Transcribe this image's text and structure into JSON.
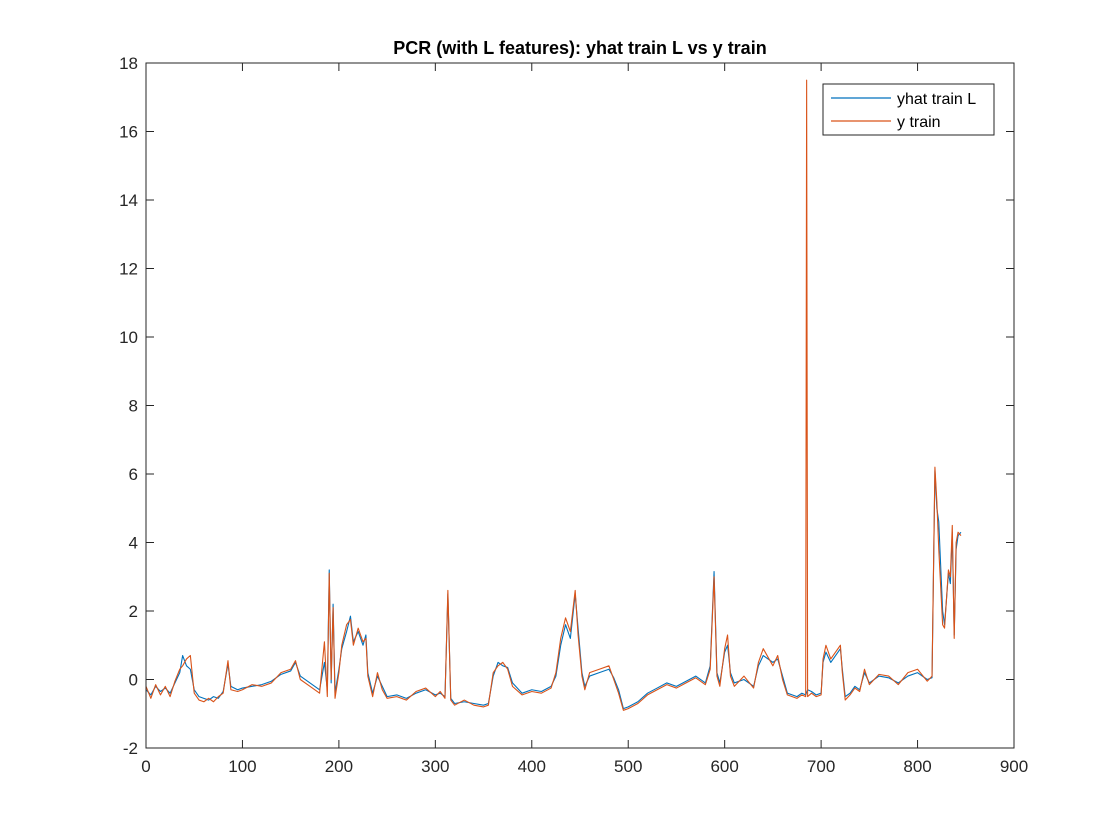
{
  "chart_data": {
    "type": "line",
    "title": "PCR (with L features): yhat train L vs y train",
    "xlabel": "",
    "ylabel": "",
    "xlim": [
      0,
      900
    ],
    "ylim": [
      -2,
      18
    ],
    "xticks": [
      0,
      100,
      200,
      300,
      400,
      500,
      600,
      700,
      800,
      900
    ],
    "yticks": [
      -2,
      0,
      2,
      4,
      6,
      8,
      10,
      12,
      14,
      16,
      18
    ],
    "grid": false,
    "legend_position": "top-right",
    "series": [
      {
        "name": "yhat train L",
        "color": "#0072BD",
        "points": [
          [
            0,
            -0.3
          ],
          [
            5,
            -0.45
          ],
          [
            10,
            -0.2
          ],
          [
            15,
            -0.35
          ],
          [
            20,
            -0.25
          ],
          [
            25,
            -0.4
          ],
          [
            30,
            -0.1
          ],
          [
            35,
            0.2
          ],
          [
            38,
            0.7
          ],
          [
            42,
            0.4
          ],
          [
            46,
            0.3
          ],
          [
            50,
            -0.3
          ],
          [
            55,
            -0.5
          ],
          [
            60,
            -0.55
          ],
          [
            65,
            -0.6
          ],
          [
            70,
            -0.5
          ],
          [
            75,
            -0.55
          ],
          [
            80,
            -0.35
          ],
          [
            85,
            0.45
          ],
          [
            88,
            -0.2
          ],
          [
            95,
            -0.3
          ],
          [
            100,
            -0.25
          ],
          [
            110,
            -0.2
          ],
          [
            120,
            -0.15
          ],
          [
            130,
            -0.05
          ],
          [
            140,
            0.15
          ],
          [
            150,
            0.25
          ],
          [
            155,
            0.5
          ],
          [
            160,
            0.1
          ],
          [
            170,
            -0.1
          ],
          [
            180,
            -0.3
          ],
          [
            185,
            0.5
          ],
          [
            188,
            -0.3
          ],
          [
            190,
            3.2
          ],
          [
            192,
            -0.1
          ],
          [
            194,
            2.2
          ],
          [
            196,
            -0.4
          ],
          [
            200,
            0.3
          ],
          [
            203,
            0.9
          ],
          [
            208,
            1.4
          ],
          [
            212,
            1.85
          ],
          [
            215,
            1.1
          ],
          [
            220,
            1.4
          ],
          [
            225,
            1.0
          ],
          [
            228,
            1.3
          ],
          [
            230,
            0.2
          ],
          [
            235,
            -0.4
          ],
          [
            240,
            0.1
          ],
          [
            245,
            -0.2
          ],
          [
            250,
            -0.5
          ],
          [
            260,
            -0.45
          ],
          [
            270,
            -0.55
          ],
          [
            280,
            -0.4
          ],
          [
            290,
            -0.3
          ],
          [
            300,
            -0.45
          ],
          [
            305,
            -0.4
          ],
          [
            310,
            -0.5
          ],
          [
            313,
            2.5
          ],
          [
            316,
            -0.55
          ],
          [
            320,
            -0.7
          ],
          [
            330,
            -0.65
          ],
          [
            340,
            -0.7
          ],
          [
            350,
            -0.75
          ],
          [
            355,
            -0.7
          ],
          [
            360,
            0.1
          ],
          [
            365,
            0.5
          ],
          [
            370,
            0.4
          ],
          [
            375,
            0.35
          ],
          [
            380,
            -0.1
          ],
          [
            390,
            -0.4
          ],
          [
            400,
            -0.3
          ],
          [
            410,
            -0.35
          ],
          [
            420,
            -0.2
          ],
          [
            425,
            0.1
          ],
          [
            430,
            1.0
          ],
          [
            435,
            1.6
          ],
          [
            440,
            1.2
          ],
          [
            445,
            2.5
          ],
          [
            448,
            1.5
          ],
          [
            452,
            0.2
          ],
          [
            455,
            -0.2
          ],
          [
            460,
            0.1
          ],
          [
            470,
            0.2
          ],
          [
            480,
            0.3
          ],
          [
            485,
            0.05
          ],
          [
            490,
            -0.3
          ],
          [
            495,
            -0.85
          ],
          [
            500,
            -0.8
          ],
          [
            510,
            -0.65
          ],
          [
            520,
            -0.4
          ],
          [
            530,
            -0.25
          ],
          [
            540,
            -0.1
          ],
          [
            550,
            -0.2
          ],
          [
            560,
            -0.05
          ],
          [
            570,
            0.1
          ],
          [
            580,
            -0.1
          ],
          [
            585,
            0.4
          ],
          [
            589,
            3.15
          ],
          [
            592,
            0.2
          ],
          [
            595,
            -0.1
          ],
          [
            600,
            0.8
          ],
          [
            603,
            1.0
          ],
          [
            606,
            0.2
          ],
          [
            610,
            -0.1
          ],
          [
            620,
            0.0
          ],
          [
            630,
            -0.2
          ],
          [
            635,
            0.4
          ],
          [
            640,
            0.7
          ],
          [
            650,
            0.5
          ],
          [
            655,
            0.6
          ],
          [
            660,
            0.1
          ],
          [
            665,
            -0.4
          ],
          [
            670,
            -0.45
          ],
          [
            675,
            -0.5
          ],
          [
            680,
            -0.4
          ],
          [
            684,
            -0.45
          ],
          [
            686,
            -0.3
          ],
          [
            690,
            -0.35
          ],
          [
            695,
            -0.45
          ],
          [
            700,
            -0.4
          ],
          [
            702,
            0.5
          ],
          [
            705,
            0.8
          ],
          [
            710,
            0.5
          ],
          [
            715,
            0.7
          ],
          [
            720,
            0.9
          ],
          [
            722,
            0.3
          ],
          [
            725,
            -0.5
          ],
          [
            730,
            -0.4
          ],
          [
            735,
            -0.2
          ],
          [
            740,
            -0.3
          ],
          [
            745,
            0.2
          ],
          [
            750,
            -0.1
          ],
          [
            760,
            0.1
          ],
          [
            770,
            0.05
          ],
          [
            780,
            -0.1
          ],
          [
            790,
            0.1
          ],
          [
            800,
            0.2
          ],
          [
            810,
            0.0
          ],
          [
            815,
            0.05
          ],
          [
            818,
            6.1
          ],
          [
            820,
            5.0
          ],
          [
            822,
            4.6
          ],
          [
            826,
            2.0
          ],
          [
            828,
            1.6
          ],
          [
            832,
            3.1
          ],
          [
            834,
            2.8
          ],
          [
            836,
            4.3
          ],
          [
            838,
            1.3
          ],
          [
            840,
            3.8
          ],
          [
            842,
            4.2
          ],
          [
            845,
            4.3
          ]
        ]
      },
      {
        "name": "y train",
        "color": "#D95319",
        "points": [
          [
            0,
            -0.2
          ],
          [
            5,
            -0.55
          ],
          [
            10,
            -0.15
          ],
          [
            15,
            -0.45
          ],
          [
            20,
            -0.2
          ],
          [
            25,
            -0.5
          ],
          [
            30,
            -0.05
          ],
          [
            35,
            0.3
          ],
          [
            38,
            0.4
          ],
          [
            42,
            0.6
          ],
          [
            46,
            0.7
          ],
          [
            50,
            -0.4
          ],
          [
            55,
            -0.6
          ],
          [
            60,
            -0.65
          ],
          [
            65,
            -0.55
          ],
          [
            70,
            -0.65
          ],
          [
            75,
            -0.5
          ],
          [
            80,
            -0.4
          ],
          [
            85,
            0.55
          ],
          [
            88,
            -0.3
          ],
          [
            95,
            -0.35
          ],
          [
            100,
            -0.3
          ],
          [
            110,
            -0.15
          ],
          [
            120,
            -0.2
          ],
          [
            130,
            -0.1
          ],
          [
            140,
            0.2
          ],
          [
            150,
            0.3
          ],
          [
            155,
            0.55
          ],
          [
            160,
            0.0
          ],
          [
            170,
            -0.2
          ],
          [
            180,
            -0.4
          ],
          [
            185,
            1.1
          ],
          [
            188,
            -0.5
          ],
          [
            190,
            3.1
          ],
          [
            192,
            0.0
          ],
          [
            194,
            2.1
          ],
          [
            196,
            -0.55
          ],
          [
            200,
            0.2
          ],
          [
            203,
            1.0
          ],
          [
            208,
            1.6
          ],
          [
            212,
            1.75
          ],
          [
            215,
            1.0
          ],
          [
            220,
            1.5
          ],
          [
            225,
            1.1
          ],
          [
            228,
            1.2
          ],
          [
            230,
            0.1
          ],
          [
            235,
            -0.5
          ],
          [
            240,
            0.2
          ],
          [
            245,
            -0.3
          ],
          [
            250,
            -0.55
          ],
          [
            260,
            -0.5
          ],
          [
            270,
            -0.6
          ],
          [
            280,
            -0.35
          ],
          [
            290,
            -0.25
          ],
          [
            300,
            -0.5
          ],
          [
            305,
            -0.35
          ],
          [
            310,
            -0.55
          ],
          [
            313,
            2.6
          ],
          [
            316,
            -0.6
          ],
          [
            320,
            -0.75
          ],
          [
            330,
            -0.6
          ],
          [
            340,
            -0.75
          ],
          [
            350,
            -0.8
          ],
          [
            355,
            -0.75
          ],
          [
            360,
            0.2
          ],
          [
            365,
            0.4
          ],
          [
            370,
            0.5
          ],
          [
            375,
            0.3
          ],
          [
            380,
            -0.2
          ],
          [
            390,
            -0.45
          ],
          [
            400,
            -0.35
          ],
          [
            410,
            -0.4
          ],
          [
            420,
            -0.25
          ],
          [
            425,
            0.2
          ],
          [
            430,
            1.2
          ],
          [
            435,
            1.8
          ],
          [
            440,
            1.4
          ],
          [
            445,
            2.6
          ],
          [
            448,
            1.3
          ],
          [
            452,
            0.1
          ],
          [
            455,
            -0.3
          ],
          [
            460,
            0.2
          ],
          [
            470,
            0.3
          ],
          [
            480,
            0.4
          ],
          [
            485,
            0.0
          ],
          [
            490,
            -0.4
          ],
          [
            495,
            -0.9
          ],
          [
            500,
            -0.85
          ],
          [
            510,
            -0.7
          ],
          [
            520,
            -0.45
          ],
          [
            530,
            -0.3
          ],
          [
            540,
            -0.15
          ],
          [
            550,
            -0.25
          ],
          [
            560,
            -0.1
          ],
          [
            570,
            0.05
          ],
          [
            580,
            -0.15
          ],
          [
            585,
            0.3
          ],
          [
            589,
            3.0
          ],
          [
            592,
            0.1
          ],
          [
            595,
            -0.2
          ],
          [
            600,
            0.9
          ],
          [
            603,
            1.3
          ],
          [
            606,
            0.1
          ],
          [
            610,
            -0.2
          ],
          [
            620,
            0.1
          ],
          [
            630,
            -0.25
          ],
          [
            635,
            0.5
          ],
          [
            640,
            0.9
          ],
          [
            650,
            0.4
          ],
          [
            655,
            0.7
          ],
          [
            660,
            0.0
          ],
          [
            665,
            -0.45
          ],
          [
            670,
            -0.5
          ],
          [
            675,
            -0.55
          ],
          [
            680,
            -0.45
          ],
          [
            684,
            -0.5
          ],
          [
            685,
            17.5
          ],
          [
            686,
            -0.5
          ],
          [
            690,
            -0.4
          ],
          [
            695,
            -0.5
          ],
          [
            700,
            -0.45
          ],
          [
            702,
            0.6
          ],
          [
            705,
            1.0
          ],
          [
            710,
            0.6
          ],
          [
            715,
            0.8
          ],
          [
            720,
            1.0
          ],
          [
            722,
            0.2
          ],
          [
            725,
            -0.6
          ],
          [
            730,
            -0.45
          ],
          [
            735,
            -0.25
          ],
          [
            740,
            -0.35
          ],
          [
            745,
            0.3
          ],
          [
            750,
            -0.15
          ],
          [
            760,
            0.15
          ],
          [
            770,
            0.1
          ],
          [
            780,
            -0.15
          ],
          [
            790,
            0.2
          ],
          [
            800,
            0.3
          ],
          [
            810,
            -0.05
          ],
          [
            815,
            0.1
          ],
          [
            818,
            6.2
          ],
          [
            820,
            5.2
          ],
          [
            822,
            3.8
          ],
          [
            826,
            1.6
          ],
          [
            828,
            1.5
          ],
          [
            832,
            3.2
          ],
          [
            834,
            3.0
          ],
          [
            836,
            4.5
          ],
          [
            838,
            1.2
          ],
          [
            840,
            4.0
          ],
          [
            842,
            4.3
          ],
          [
            845,
            4.2
          ]
        ]
      }
    ]
  }
}
